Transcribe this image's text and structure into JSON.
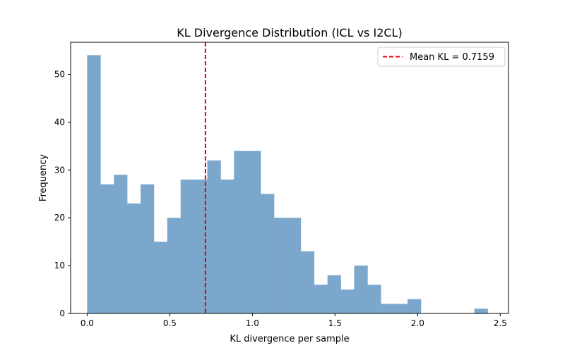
{
  "chart_data": {
    "type": "bar",
    "title": "KL Divergence Distribution (ICL vs I2CL)",
    "xlabel": "KL divergence per sample",
    "ylabel": "Frequency",
    "xlim": [
      -0.1,
      2.55
    ],
    "ylim": [
      0,
      56.7
    ],
    "x_ticks": [
      0.0,
      0.5,
      1.0,
      1.5,
      2.0,
      2.5
    ],
    "x_tick_labels": [
      "0.0",
      "0.5",
      "1.0",
      "1.5",
      "2.0",
      "2.5"
    ],
    "y_ticks": [
      0,
      10,
      20,
      30,
      40,
      50
    ],
    "y_tick_labels": [
      "0",
      "10",
      "20",
      "30",
      "40",
      "50"
    ],
    "bin_start": 0.0,
    "bin_width": 0.0808,
    "values": [
      54,
      27,
      29,
      23,
      27,
      15,
      20,
      28,
      28,
      32,
      28,
      34,
      34,
      25,
      20,
      20,
      13,
      6,
      8,
      5,
      10,
      6,
      2,
      2,
      3,
      0,
      0,
      0,
      0,
      1
    ],
    "bar_color": "#7ba7cc",
    "mean_line": {
      "value": 0.7159,
      "color": "#e60000",
      "label": "Mean KL = 0.7159"
    },
    "legend_position": "top-right",
    "grid": false
  }
}
